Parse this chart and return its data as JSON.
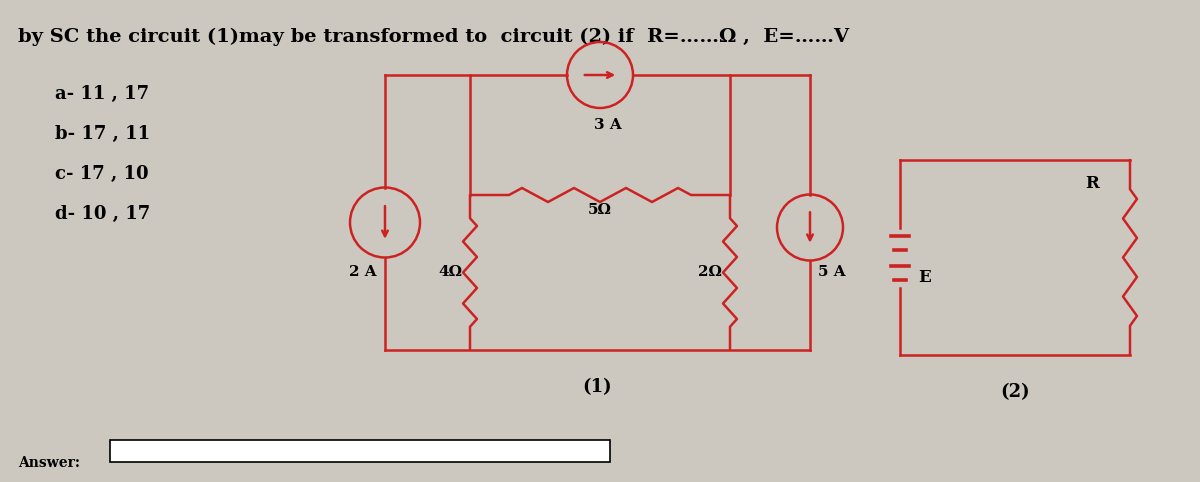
{
  "title": "by SC the circuit (1)may be transformed to  circuit (2) if  R=……Ω ,  E=……V",
  "options": [
    "a- 11 , 17",
    "b- 17 , 11",
    "c- 17 , 10",
    "d- 10 , 17"
  ],
  "bg_color": "#ccc8c0",
  "circuit_color": "#cc2222",
  "answer_label": "Answer:",
  "circuit1_label": "(1)",
  "circuit2_label": "(2)",
  "label_3A": "3 A",
  "label_5ohm": "5Ω",
  "label_4ohm": "4Ω",
  "label_2ohm": "2Ω",
  "label_2A": "2 A",
  "label_5A": "5 A",
  "label_R": "R",
  "label_E": "E",
  "title_fontsize": 14,
  "option_fontsize": 13,
  "label_fontsize": 11,
  "lw": 1.8
}
